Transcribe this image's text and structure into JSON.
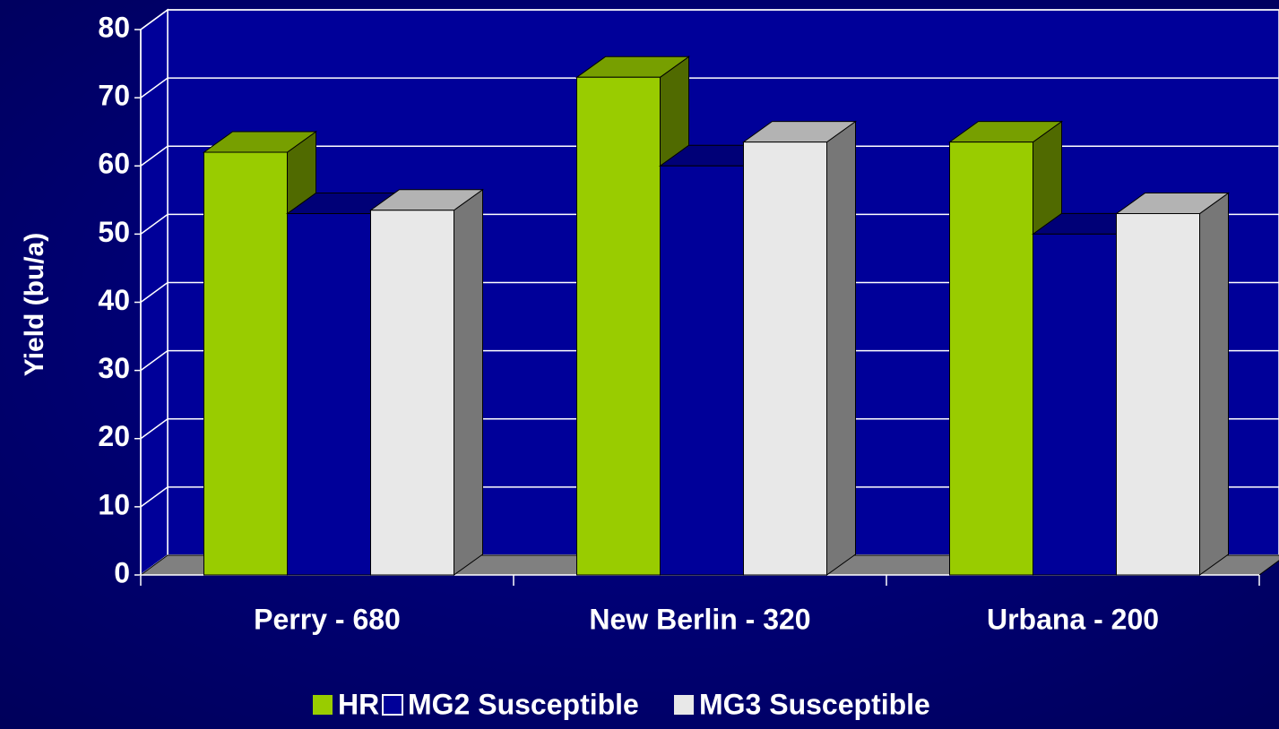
{
  "chart_data": {
    "type": "bar",
    "ylabel": "Yield (bu/a)",
    "categories": [
      "Perry - 680",
      "New Berlin - 320",
      "Urbana - 200"
    ],
    "series": [
      {
        "name": "HR",
        "color": "#99cc00",
        "values": [
          62,
          73,
          63.5
        ]
      },
      {
        "name": "MG2 Susceptible",
        "color": "#000099",
        "values": [
          53,
          60,
          50
        ]
      },
      {
        "name": "MG3 Susceptible",
        "color": "#e8e8e8",
        "values": [
          53.5,
          63.5,
          53
        ]
      }
    ],
    "ylim": [
      0,
      80
    ],
    "yticks": [
      0,
      10,
      20,
      30,
      40,
      50,
      60,
      70,
      80
    ],
    "grid": true,
    "legend": "bottom"
  }
}
